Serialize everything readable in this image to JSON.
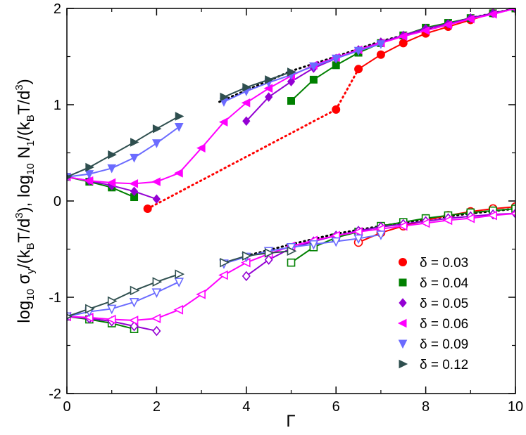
{
  "chart_data": {
    "type": "line",
    "xlabel": "Γ",
    "ylabel": {
      "p1": "log",
      "p1sub": "10",
      "p2": " σ",
      "p2sub": "y",
      "p3": "/(k",
      "p3sub": "B",
      "p4": "T/d",
      "p4sup": "3",
      "p5": "), log",
      "p5sub": "10",
      "p6": " N",
      "p6sub": "1",
      "p7": "/(k",
      "p7sub": "B",
      "p8": "T/d",
      "p8sup": "3",
      "p9": ")"
    },
    "xlim": [
      0,
      10
    ],
    "ylim": [
      -2,
      2
    ],
    "xticks": [
      0,
      2,
      4,
      6,
      8,
      10
    ],
    "yticks": [
      -2,
      -1,
      0,
      1,
      2
    ],
    "legend_position": "bottom-right",
    "series": [
      {
        "name": "δ = 0.03",
        "color": "#ff0000",
        "marker": "circle",
        "N1": [
          [
            1.8,
            -0.08
          ],
          [
            6.0,
            0.95
          ],
          [
            6.5,
            1.37
          ],
          [
            7.0,
            1.52
          ],
          [
            7.5,
            1.64
          ],
          [
            8.0,
            1.74
          ],
          [
            8.5,
            1.81
          ],
          [
            9.0,
            1.88
          ],
          [
            9.5,
            1.95
          ],
          [
            10.0,
            2.0
          ]
        ],
        "N1_dotted_until": 2,
        "sigma": [
          [
            6.5,
            -0.43
          ],
          [
            7.0,
            -0.33
          ],
          [
            7.5,
            -0.26
          ],
          [
            8.0,
            -0.2
          ],
          [
            8.5,
            -0.15
          ],
          [
            9.0,
            -0.11
          ],
          [
            9.5,
            -0.08
          ],
          [
            10.0,
            -0.06
          ]
        ]
      },
      {
        "name": "δ = 0.04",
        "color": "#008000",
        "marker": "square",
        "N1": [
          [
            0.0,
            0.25
          ],
          [
            0.5,
            0.2
          ],
          [
            1.0,
            0.14
          ],
          [
            1.5,
            0.04
          ],
          [
            5.0,
            1.04
          ],
          [
            5.5,
            1.26
          ],
          [
            6.0,
            1.41
          ],
          [
            6.5,
            1.54
          ],
          [
            7.0,
            1.64
          ],
          [
            7.5,
            1.72
          ],
          [
            8.0,
            1.8
          ],
          [
            8.5,
            1.85
          ],
          [
            9.0,
            1.9
          ],
          [
            9.5,
            1.95
          ],
          [
            10.0,
            2.0
          ]
        ],
        "sigma": [
          [
            0.0,
            -1.2
          ],
          [
            0.5,
            -1.23
          ],
          [
            1.0,
            -1.27
          ],
          [
            1.5,
            -1.33
          ],
          [
            5.0,
            -0.64
          ],
          [
            5.5,
            -0.48
          ],
          [
            6.0,
            -0.38
          ],
          [
            6.5,
            -0.32
          ],
          [
            7.0,
            -0.26
          ],
          [
            7.5,
            -0.22
          ],
          [
            8.0,
            -0.18
          ],
          [
            8.5,
            -0.15
          ],
          [
            9.0,
            -0.12
          ],
          [
            9.5,
            -0.1
          ],
          [
            10.0,
            -0.08
          ]
        ]
      },
      {
        "name": "δ = 0.05",
        "color": "#9400d3",
        "marker": "diamond",
        "N1": [
          [
            0.0,
            0.25
          ],
          [
            0.5,
            0.21
          ],
          [
            1.0,
            0.16
          ],
          [
            1.5,
            0.1
          ],
          [
            2.0,
            0.02
          ],
          [
            4.0,
            0.83
          ],
          [
            4.5,
            1.08
          ],
          [
            5.0,
            1.24
          ],
          [
            5.5,
            1.38
          ],
          [
            6.0,
            1.48
          ],
          [
            6.5,
            1.57
          ],
          [
            7.0,
            1.65
          ],
          [
            7.5,
            1.72
          ],
          [
            8.0,
            1.79
          ],
          [
            8.5,
            1.84
          ],
          [
            9.0,
            1.9
          ],
          [
            9.5,
            1.95
          ],
          [
            10.0,
            2.0
          ]
        ],
        "sigma": [
          [
            0.0,
            -1.2
          ],
          [
            0.5,
            -1.22
          ],
          [
            1.0,
            -1.25
          ],
          [
            1.5,
            -1.3
          ],
          [
            2.0,
            -1.35
          ],
          [
            4.0,
            -0.78
          ],
          [
            4.5,
            -0.61
          ],
          [
            5.0,
            -0.49
          ],
          [
            5.5,
            -0.42
          ],
          [
            6.0,
            -0.36
          ],
          [
            6.5,
            -0.31
          ],
          [
            7.0,
            -0.27
          ],
          [
            7.5,
            -0.24
          ],
          [
            8.0,
            -0.21
          ],
          [
            8.5,
            -0.18
          ],
          [
            9.0,
            -0.16
          ],
          [
            9.5,
            -0.14
          ],
          [
            10.0,
            -0.13
          ]
        ]
      },
      {
        "name": "δ = 0.06",
        "color": "#ff00ff",
        "marker": "triangle-left",
        "N1": [
          [
            0.0,
            0.25
          ],
          [
            0.5,
            0.21
          ],
          [
            1.0,
            0.19
          ],
          [
            1.5,
            0.18
          ],
          [
            2.0,
            0.2
          ],
          [
            2.5,
            0.29
          ],
          [
            3.0,
            0.55
          ],
          [
            3.5,
            0.82
          ],
          [
            4.0,
            1.02
          ],
          [
            4.5,
            1.17
          ],
          [
            5.0,
            1.3
          ],
          [
            5.5,
            1.41
          ],
          [
            6.0,
            1.49
          ],
          [
            6.5,
            1.57
          ],
          [
            7.0,
            1.64
          ],
          [
            7.5,
            1.71
          ],
          [
            8.0,
            1.77
          ],
          [
            8.5,
            1.83
          ],
          [
            9.0,
            1.89
          ],
          [
            9.5,
            1.94
          ],
          [
            10.0,
            2.0
          ]
        ],
        "sigma": [
          [
            0.0,
            -1.2
          ],
          [
            0.5,
            -1.21
          ],
          [
            1.0,
            -1.23
          ],
          [
            1.5,
            -1.24
          ],
          [
            2.0,
            -1.22
          ],
          [
            2.5,
            -1.13
          ],
          [
            3.0,
            -0.97
          ],
          [
            3.5,
            -0.77
          ],
          [
            4.0,
            -0.64
          ],
          [
            4.5,
            -0.55
          ],
          [
            5.0,
            -0.47
          ],
          [
            5.5,
            -0.41
          ],
          [
            6.0,
            -0.36
          ],
          [
            6.5,
            -0.32
          ],
          [
            7.0,
            -0.29
          ],
          [
            7.5,
            -0.26
          ],
          [
            8.0,
            -0.23
          ],
          [
            8.5,
            -0.2
          ],
          [
            9.0,
            -0.18
          ],
          [
            9.5,
            -0.15
          ],
          [
            10.0,
            -0.13
          ]
        ]
      },
      {
        "name": "δ = 0.09",
        "color": "#6b6bff",
        "marker": "triangle-down",
        "N1": [
          [
            0.0,
            0.25
          ],
          [
            0.5,
            0.28
          ],
          [
            1.0,
            0.34
          ],
          [
            1.5,
            0.45
          ],
          [
            2.0,
            0.6
          ],
          [
            2.5,
            0.77
          ],
          [
            3.5,
            1.03
          ],
          [
            4.0,
            1.14
          ],
          [
            4.5,
            1.23
          ],
          [
            5.0,
            1.31
          ],
          [
            5.5,
            1.4
          ],
          [
            6.0,
            1.48
          ],
          [
            6.5,
            1.56
          ],
          [
            7.0,
            1.63
          ]
        ],
        "sigma": [
          [
            0.0,
            -1.2
          ],
          [
            0.5,
            -1.15
          ],
          [
            1.0,
            -1.12
          ],
          [
            1.5,
            -1.05
          ],
          [
            2.0,
            -0.95
          ],
          [
            2.5,
            -0.84
          ],
          [
            3.5,
            -0.65
          ],
          [
            4.0,
            -0.58
          ],
          [
            4.5,
            -0.52
          ],
          [
            5.0,
            -0.48
          ],
          [
            5.5,
            -0.45
          ],
          [
            6.0,
            -0.42
          ],
          [
            6.5,
            -0.39
          ],
          [
            7.0,
            -0.35
          ]
        ]
      },
      {
        "name": "δ = 0.12",
        "color": "#2f4f4f",
        "marker": "triangle-right",
        "N1": [
          [
            0.0,
            0.25
          ],
          [
            0.5,
            0.35
          ],
          [
            1.0,
            0.48
          ],
          [
            1.5,
            0.61
          ],
          [
            2.0,
            0.75
          ],
          [
            2.5,
            0.88
          ],
          [
            3.5,
            1.08
          ],
          [
            4.0,
            1.18
          ],
          [
            4.5,
            1.26
          ],
          [
            5.0,
            1.34
          ]
        ],
        "sigma": [
          [
            0.0,
            -1.2
          ],
          [
            0.5,
            -1.12
          ],
          [
            1.0,
            -1.04
          ],
          [
            1.5,
            -0.93
          ],
          [
            2.0,
            -0.84
          ],
          [
            2.5,
            -0.76
          ],
          [
            3.5,
            -0.64
          ],
          [
            4.0,
            -0.57
          ],
          [
            4.5,
            -0.54
          ],
          [
            5.0,
            -0.52
          ]
        ]
      }
    ],
    "reference_lines": [
      {
        "style": "dotted",
        "color": "#000000",
        "points": [
          [
            3.4,
            1.03
          ],
          [
            5.0,
            1.35
          ],
          [
            6.0,
            1.5
          ],
          [
            7.0,
            1.66
          ],
          [
            8.0,
            1.78
          ],
          [
            9.0,
            1.9
          ],
          [
            10.0,
            2.0
          ]
        ]
      },
      {
        "style": "dotted",
        "color": "#000000",
        "points": [
          [
            4.0,
            -0.57
          ],
          [
            5.0,
            -0.45
          ],
          [
            6.0,
            -0.34
          ],
          [
            7.0,
            -0.26
          ],
          [
            8.0,
            -0.19
          ],
          [
            9.0,
            -0.13
          ],
          [
            10.0,
            -0.08
          ]
        ]
      }
    ]
  }
}
